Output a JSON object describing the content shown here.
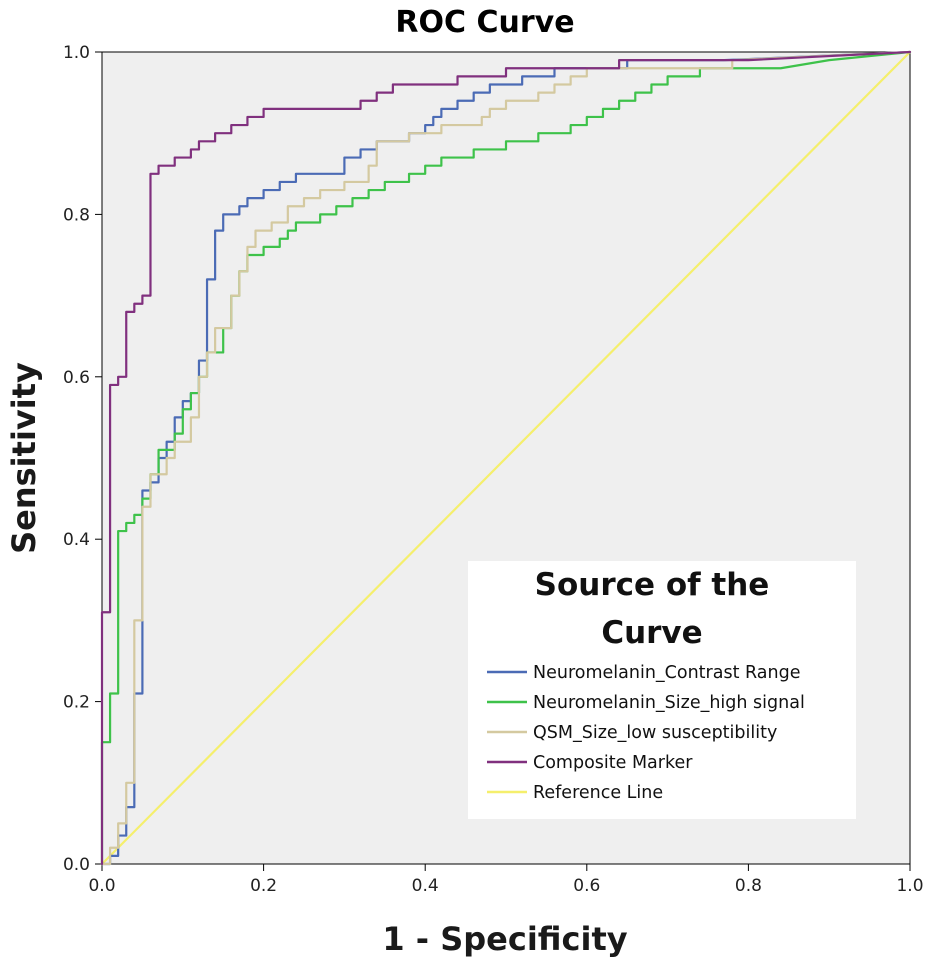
{
  "chart_data": {
    "type": "line",
    "title": "ROC Curve",
    "xlabel": "1 - Specificity",
    "ylabel": "Sensitivity",
    "xlim": [
      0,
      1
    ],
    "ylim": [
      0,
      1
    ],
    "xticks": [
      "0.0",
      "0.2",
      "0.4",
      "0.6",
      "0.8",
      "1.0"
    ],
    "yticks": [
      "0.0",
      "0.2",
      "0.4",
      "0.6",
      "0.8",
      "1.0"
    ],
    "grid": false,
    "plot_background": "#efefef",
    "legend": {
      "title_line1": "Source of the",
      "title_line2": "Curve",
      "placement": "lower-right"
    },
    "series": [
      {
        "name": "Neuromelanin_Contrast Range",
        "color": "#4b6bb5",
        "points": [
          [
            0,
            0
          ],
          [
            0.01,
            0
          ],
          [
            0.01,
            0.01
          ],
          [
            0.02,
            0.01
          ],
          [
            0.02,
            0.035
          ],
          [
            0.03,
            0.035
          ],
          [
            0.03,
            0.07
          ],
          [
            0.04,
            0.07
          ],
          [
            0.04,
            0.21
          ],
          [
            0.05,
            0.21
          ],
          [
            0.05,
            0.46
          ],
          [
            0.06,
            0.46
          ],
          [
            0.06,
            0.47
          ],
          [
            0.07,
            0.47
          ],
          [
            0.07,
            0.5
          ],
          [
            0.08,
            0.5
          ],
          [
            0.08,
            0.52
          ],
          [
            0.09,
            0.52
          ],
          [
            0.09,
            0.55
          ],
          [
            0.1,
            0.55
          ],
          [
            0.1,
            0.57
          ],
          [
            0.11,
            0.57
          ],
          [
            0.11,
            0.58
          ],
          [
            0.12,
            0.58
          ],
          [
            0.12,
            0.62
          ],
          [
            0.13,
            0.62
          ],
          [
            0.13,
            0.72
          ],
          [
            0.14,
            0.72
          ],
          [
            0.14,
            0.78
          ],
          [
            0.15,
            0.78
          ],
          [
            0.15,
            0.8
          ],
          [
            0.17,
            0.8
          ],
          [
            0.17,
            0.81
          ],
          [
            0.18,
            0.81
          ],
          [
            0.18,
            0.82
          ],
          [
            0.2,
            0.82
          ],
          [
            0.2,
            0.83
          ],
          [
            0.22,
            0.83
          ],
          [
            0.22,
            0.84
          ],
          [
            0.24,
            0.84
          ],
          [
            0.24,
            0.85
          ],
          [
            0.3,
            0.85
          ],
          [
            0.3,
            0.87
          ],
          [
            0.32,
            0.87
          ],
          [
            0.32,
            0.88
          ],
          [
            0.34,
            0.88
          ],
          [
            0.34,
            0.89
          ],
          [
            0.38,
            0.89
          ],
          [
            0.38,
            0.9
          ],
          [
            0.4,
            0.9
          ],
          [
            0.4,
            0.91
          ],
          [
            0.41,
            0.91
          ],
          [
            0.41,
            0.92
          ],
          [
            0.42,
            0.92
          ],
          [
            0.42,
            0.93
          ],
          [
            0.44,
            0.93
          ],
          [
            0.44,
            0.94
          ],
          [
            0.46,
            0.94
          ],
          [
            0.46,
            0.95
          ],
          [
            0.48,
            0.95
          ],
          [
            0.48,
            0.96
          ],
          [
            0.52,
            0.96
          ],
          [
            0.52,
            0.97
          ],
          [
            0.56,
            0.97
          ],
          [
            0.56,
            0.98
          ],
          [
            0.65,
            0.98
          ],
          [
            0.65,
            0.99
          ],
          [
            0.77,
            0.99
          ],
          [
            0.77,
            0.99
          ],
          [
            1,
            1
          ]
        ]
      },
      {
        "name": "Neuromelanin_Size_high signal",
        "color": "#3ec24a",
        "points": [
          [
            0,
            0
          ],
          [
            0,
            0.15
          ],
          [
            0.01,
            0.15
          ],
          [
            0.01,
            0.21
          ],
          [
            0.02,
            0.21
          ],
          [
            0.02,
            0.41
          ],
          [
            0.03,
            0.41
          ],
          [
            0.03,
            0.42
          ],
          [
            0.04,
            0.42
          ],
          [
            0.04,
            0.43
          ],
          [
            0.05,
            0.43
          ],
          [
            0.05,
            0.45
          ],
          [
            0.06,
            0.45
          ],
          [
            0.06,
            0.48
          ],
          [
            0.07,
            0.48
          ],
          [
            0.07,
            0.51
          ],
          [
            0.09,
            0.51
          ],
          [
            0.09,
            0.53
          ],
          [
            0.1,
            0.53
          ],
          [
            0.1,
            0.56
          ],
          [
            0.11,
            0.56
          ],
          [
            0.11,
            0.58
          ],
          [
            0.12,
            0.58
          ],
          [
            0.12,
            0.6
          ],
          [
            0.13,
            0.6
          ],
          [
            0.13,
            0.63
          ],
          [
            0.15,
            0.63
          ],
          [
            0.15,
            0.66
          ],
          [
            0.16,
            0.66
          ],
          [
            0.16,
            0.7
          ],
          [
            0.17,
            0.7
          ],
          [
            0.17,
            0.73
          ],
          [
            0.18,
            0.73
          ],
          [
            0.18,
            0.75
          ],
          [
            0.2,
            0.75
          ],
          [
            0.2,
            0.76
          ],
          [
            0.22,
            0.76
          ],
          [
            0.22,
            0.77
          ],
          [
            0.23,
            0.77
          ],
          [
            0.23,
            0.78
          ],
          [
            0.24,
            0.78
          ],
          [
            0.24,
            0.79
          ],
          [
            0.27,
            0.79
          ],
          [
            0.27,
            0.8
          ],
          [
            0.29,
            0.8
          ],
          [
            0.29,
            0.81
          ],
          [
            0.31,
            0.81
          ],
          [
            0.31,
            0.82
          ],
          [
            0.33,
            0.82
          ],
          [
            0.33,
            0.83
          ],
          [
            0.35,
            0.83
          ],
          [
            0.35,
            0.84
          ],
          [
            0.38,
            0.84
          ],
          [
            0.38,
            0.85
          ],
          [
            0.4,
            0.85
          ],
          [
            0.4,
            0.86
          ],
          [
            0.42,
            0.86
          ],
          [
            0.42,
            0.87
          ],
          [
            0.46,
            0.87
          ],
          [
            0.46,
            0.88
          ],
          [
            0.5,
            0.88
          ],
          [
            0.5,
            0.89
          ],
          [
            0.54,
            0.89
          ],
          [
            0.54,
            0.9
          ],
          [
            0.58,
            0.9
          ],
          [
            0.58,
            0.91
          ],
          [
            0.6,
            0.91
          ],
          [
            0.6,
            0.92
          ],
          [
            0.62,
            0.92
          ],
          [
            0.62,
            0.93
          ],
          [
            0.64,
            0.93
          ],
          [
            0.64,
            0.94
          ],
          [
            0.66,
            0.94
          ],
          [
            0.66,
            0.95
          ],
          [
            0.68,
            0.95
          ],
          [
            0.68,
            0.96
          ],
          [
            0.7,
            0.96
          ],
          [
            0.7,
            0.97
          ],
          [
            0.74,
            0.97
          ],
          [
            0.74,
            0.98
          ],
          [
            0.84,
            0.98
          ],
          [
            0.9,
            0.99
          ],
          [
            1,
            1
          ]
        ]
      },
      {
        "name": "QSM_Size_low susceptibility",
        "color": "#d4c9a0",
        "points": [
          [
            0,
            0
          ],
          [
            0.01,
            0
          ],
          [
            0.01,
            0.02
          ],
          [
            0.02,
            0.02
          ],
          [
            0.02,
            0.05
          ],
          [
            0.03,
            0.05
          ],
          [
            0.03,
            0.1
          ],
          [
            0.04,
            0.1
          ],
          [
            0.04,
            0.3
          ],
          [
            0.05,
            0.3
          ],
          [
            0.05,
            0.44
          ],
          [
            0.06,
            0.44
          ],
          [
            0.06,
            0.48
          ],
          [
            0.08,
            0.48
          ],
          [
            0.08,
            0.5
          ],
          [
            0.09,
            0.5
          ],
          [
            0.09,
            0.52
          ],
          [
            0.11,
            0.52
          ],
          [
            0.11,
            0.55
          ],
          [
            0.12,
            0.55
          ],
          [
            0.12,
            0.6
          ],
          [
            0.13,
            0.6
          ],
          [
            0.13,
            0.63
          ],
          [
            0.14,
            0.63
          ],
          [
            0.14,
            0.66
          ],
          [
            0.16,
            0.66
          ],
          [
            0.16,
            0.7
          ],
          [
            0.17,
            0.7
          ],
          [
            0.17,
            0.73
          ],
          [
            0.18,
            0.73
          ],
          [
            0.18,
            0.76
          ],
          [
            0.19,
            0.76
          ],
          [
            0.19,
            0.78
          ],
          [
            0.21,
            0.78
          ],
          [
            0.21,
            0.79
          ],
          [
            0.23,
            0.79
          ],
          [
            0.23,
            0.81
          ],
          [
            0.25,
            0.81
          ],
          [
            0.25,
            0.82
          ],
          [
            0.27,
            0.82
          ],
          [
            0.27,
            0.83
          ],
          [
            0.3,
            0.83
          ],
          [
            0.3,
            0.84
          ],
          [
            0.33,
            0.84
          ],
          [
            0.33,
            0.86
          ],
          [
            0.34,
            0.86
          ],
          [
            0.34,
            0.89
          ],
          [
            0.38,
            0.89
          ],
          [
            0.38,
            0.9
          ],
          [
            0.42,
            0.9
          ],
          [
            0.42,
            0.91
          ],
          [
            0.47,
            0.91
          ],
          [
            0.47,
            0.92
          ],
          [
            0.48,
            0.92
          ],
          [
            0.48,
            0.93
          ],
          [
            0.5,
            0.93
          ],
          [
            0.5,
            0.94
          ],
          [
            0.54,
            0.94
          ],
          [
            0.54,
            0.95
          ],
          [
            0.56,
            0.95
          ],
          [
            0.56,
            0.96
          ],
          [
            0.58,
            0.96
          ],
          [
            0.58,
            0.97
          ],
          [
            0.6,
            0.97
          ],
          [
            0.6,
            0.98
          ],
          [
            0.78,
            0.98
          ],
          [
            0.78,
            0.99
          ],
          [
            1,
            1
          ]
        ]
      },
      {
        "name": "Composite Marker",
        "color": "#80307e",
        "points": [
          [
            0,
            0
          ],
          [
            0,
            0.31
          ],
          [
            0.01,
            0.31
          ],
          [
            0.01,
            0.59
          ],
          [
            0.02,
            0.59
          ],
          [
            0.02,
            0.6
          ],
          [
            0.03,
            0.6
          ],
          [
            0.03,
            0.68
          ],
          [
            0.04,
            0.68
          ],
          [
            0.04,
            0.69
          ],
          [
            0.05,
            0.69
          ],
          [
            0.05,
            0.7
          ],
          [
            0.06,
            0.7
          ],
          [
            0.06,
            0.85
          ],
          [
            0.07,
            0.85
          ],
          [
            0.07,
            0.86
          ],
          [
            0.09,
            0.86
          ],
          [
            0.09,
            0.87
          ],
          [
            0.11,
            0.87
          ],
          [
            0.11,
            0.88
          ],
          [
            0.12,
            0.88
          ],
          [
            0.12,
            0.89
          ],
          [
            0.14,
            0.89
          ],
          [
            0.14,
            0.9
          ],
          [
            0.16,
            0.9
          ],
          [
            0.16,
            0.91
          ],
          [
            0.18,
            0.91
          ],
          [
            0.18,
            0.92
          ],
          [
            0.2,
            0.92
          ],
          [
            0.2,
            0.93
          ],
          [
            0.32,
            0.93
          ],
          [
            0.32,
            0.94
          ],
          [
            0.34,
            0.94
          ],
          [
            0.34,
            0.95
          ],
          [
            0.36,
            0.95
          ],
          [
            0.36,
            0.96
          ],
          [
            0.44,
            0.96
          ],
          [
            0.44,
            0.97
          ],
          [
            0.5,
            0.97
          ],
          [
            0.5,
            0.98
          ],
          [
            0.64,
            0.98
          ],
          [
            0.64,
            0.99
          ],
          [
            0.8,
            0.99
          ],
          [
            1,
            1
          ]
        ]
      },
      {
        "name": "Reference Line",
        "color": "#f5ef6c",
        "points": [
          [
            0,
            0
          ],
          [
            1,
            1
          ]
        ]
      }
    ]
  }
}
